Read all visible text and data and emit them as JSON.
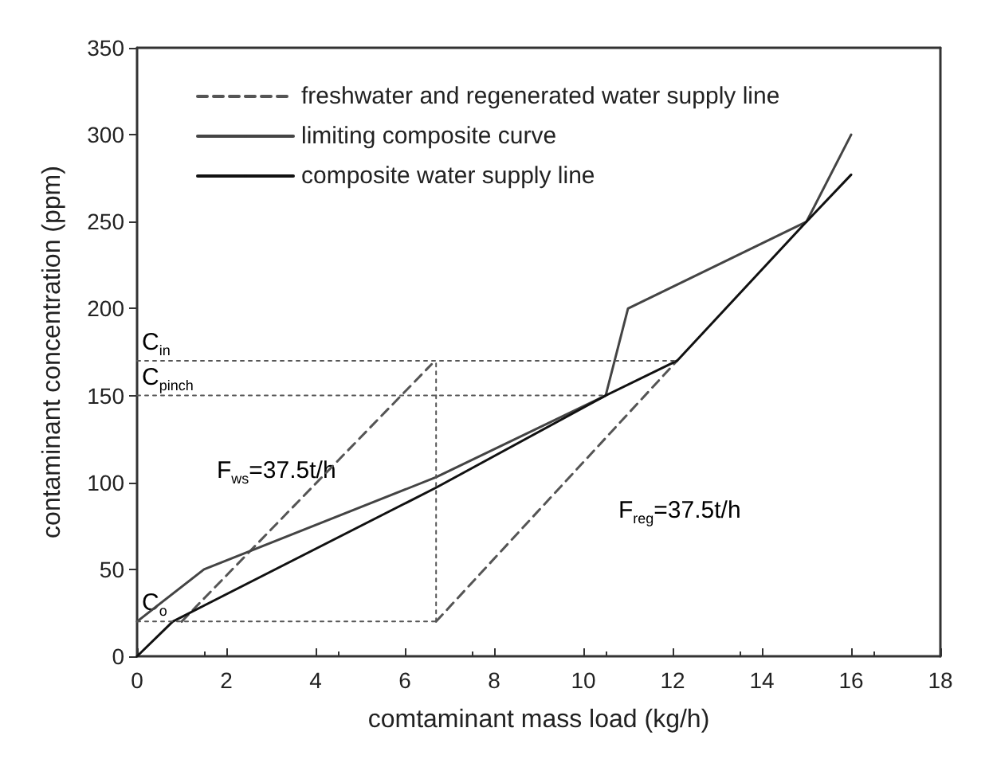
{
  "chart_data": {
    "type": "line",
    "xlabel": "comtaminant mass load (kg/h)",
    "ylabel": "contaminant concentration (ppm)",
    "xlim": [
      0,
      18
    ],
    "xticks": [
      0,
      2,
      4,
      6,
      8,
      10,
      12,
      14,
      16,
      18
    ],
    "ylim": [
      0,
      350
    ],
    "yticks": [
      0,
      50,
      100,
      150,
      200,
      250,
      300,
      350
    ],
    "grid": false,
    "legend": "top left",
    "marker": "none",
    "series": [
      {
        "name": "freshwater and regenerated water supply line",
        "color": "#555555",
        "line_style": "dashed",
        "x": [
          1.0,
          6.6,
          6.65,
          6.7,
          12.1
        ],
        "values": [
          20,
          168,
          null,
          20,
          170
        ]
      },
      {
        "name": "limiting composite curve",
        "color": "#444444",
        "line_style": "solid",
        "x": [
          0,
          1.5,
          6.7,
          10.5,
          11,
          15,
          16
        ],
        "values": [
          20,
          50,
          103,
          150,
          200,
          250,
          300
        ]
      },
      {
        "name": "composite water supply line",
        "color": "#111111",
        "line_style": "solid",
        "x": [
          0,
          0.8,
          6.7,
          10.5,
          12.1,
          15,
          16
        ],
        "values": [
          0,
          20,
          97,
          150,
          170,
          250,
          277
        ]
      },
      {
        "color": "#555555",
        "line_style": "dotted",
        "x": [
          0,
          12.1
        ],
        "values": [
          170,
          170
        ]
      },
      {
        "color": "#555555",
        "line_style": "dotted",
        "x": [
          0,
          10.5
        ],
        "values": [
          150,
          150
        ]
      },
      {
        "color": "#555555",
        "line_style": "dotted",
        "x": [
          0,
          6.7
        ],
        "values": [
          20,
          20
        ]
      },
      {
        "color": "#555555",
        "line_style": "dotted",
        "x": [
          6.7,
          6.7
        ],
        "values": [
          20,
          170
        ]
      }
    ],
    "annotations": [
      {
        "text": "C$_{in}$",
        "y": 170
      },
      {
        "text": "C$_{pinch}$",
        "y": 150
      },
      {
        "text": "C$_{o}$",
        "y": 20
      },
      "F$_{ws}$=37.5t/h",
      "F$_{reg}$=37.5t/h"
    ]
  }
}
